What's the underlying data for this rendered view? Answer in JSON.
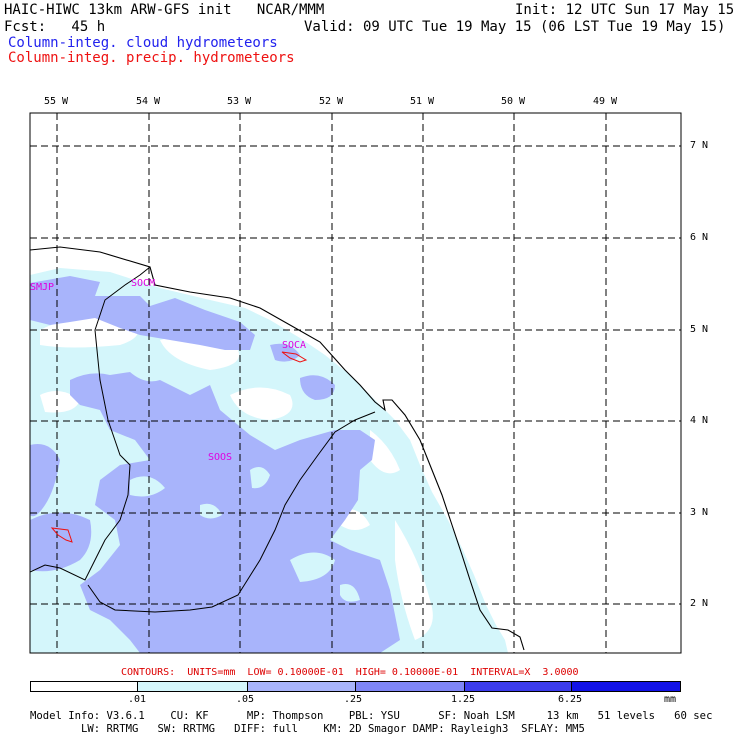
{
  "header": {
    "title": "HAIC-HIWC 13km ARW-GFS init   NCAR/MMM",
    "init": "Init: 12 UTC Sun 17 May 15",
    "fcst": "Fcst:   45 h",
    "valid": "Valid: 09 UTC Tue 19 May 15 (06 LST Tue 19 May 15)",
    "field1": "Column-integ. cloud hydrometeors",
    "field2": "Column-integ. precip. hydrometeors"
  },
  "axes": {
    "lon_labels": [
      "55 W",
      "54 W",
      "53 W",
      "52 W",
      "51 W",
      "50 W",
      "49 W"
    ],
    "lat_labels": [
      "7 N",
      "6 N",
      "5 N",
      "4 N",
      "3 N",
      "2 N"
    ]
  },
  "stations": [
    "SMJP",
    "SOCM",
    "SOCA",
    "SOOS"
  ],
  "contour_info": "CONTOURS:  UNITS=mm  LOW= 0.10000E-01  HIGH= 0.10000E-01  INTERVAL=X  3.0000",
  "colorbar": {
    "labels": [
      ".01",
      ".05",
      ".25",
      "1.25",
      "6.25",
      "mm"
    ],
    "colors": [
      "#ffffff",
      "#d4f6fb",
      "#a8b4fb",
      "#7f86f6",
      "#3c3cec",
      "#1212e6"
    ]
  },
  "footer": {
    "line1": "Model Info: V3.6.1    CU: KF      MP: Thompson    PBL: YSU      SF: Noah LSM     13 km   51 levels   60 sec",
    "line2": "        LW: RRTMG   SW: RRTMG   DIFF: full    KM: 2D Smagor DAMP: Rayleigh3  SFLAY: MM5"
  },
  "colors": {
    "cloud_light": "#d4f6fb",
    "cloud_med": "#a8b4fb",
    "grid": "#000000",
    "precip_contour": "#ee1111",
    "station": "#e000e0"
  }
}
